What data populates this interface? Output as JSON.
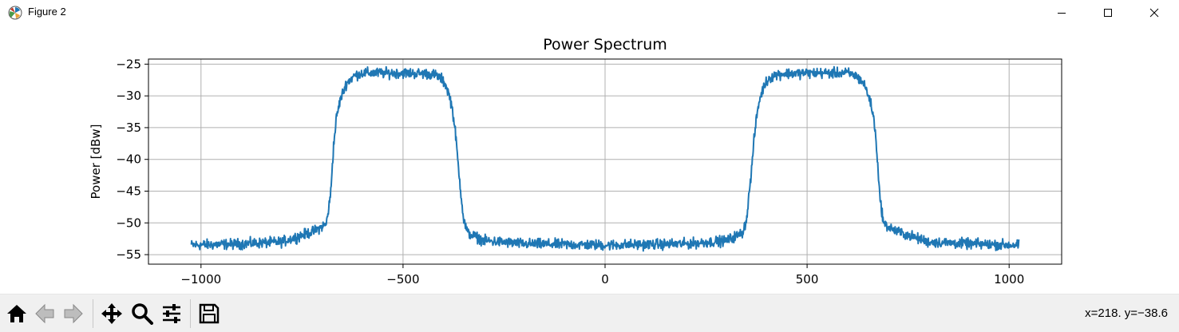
{
  "window": {
    "title": "Figure 2",
    "controls": {
      "minimize_icon": "minimize-icon",
      "maximize_icon": "maximize-icon",
      "close_icon": "close-icon"
    }
  },
  "toolbar": {
    "tools": [
      "home-icon",
      "back-arrow-icon",
      "forward-arrow-icon",
      "pan-icon",
      "zoom-icon",
      "configure-subplots-icon",
      "save-icon"
    ],
    "coordinates": "x=218.  y=−38.6"
  },
  "colors": {
    "line": "#1f77b4",
    "grid": "#b0b0b0",
    "axes": "#000000"
  },
  "chart_data": {
    "type": "line",
    "title": "Power Spectrum",
    "xlabel": "",
    "ylabel": "Power [dBw]",
    "xlim": [
      -1130,
      1130
    ],
    "ylim": [
      -56.5,
      -24.2
    ],
    "xticks": [
      -1000,
      -500,
      0,
      500,
      1000
    ],
    "xtick_labels": [
      "−1000",
      "−500",
      "0",
      "500",
      "1000"
    ],
    "yticks": [
      -25,
      -30,
      -35,
      -40,
      -45,
      -50,
      -55
    ],
    "ytick_labels": [
      "−25",
      "−30",
      "−35",
      "−40",
      "−45",
      "−50",
      "−55"
    ],
    "grid": true,
    "series": [
      {
        "x": [
          -1024,
          -900,
          -800,
          -720,
          -690,
          -680,
          -672,
          -665,
          -655,
          -640,
          -620,
          -600,
          -500,
          -440,
          -420,
          -405,
          -395,
          -385,
          -378,
          -370,
          -362,
          -350,
          -340,
          -300,
          -200,
          0,
          200,
          300,
          340,
          350,
          362,
          370,
          378,
          385,
          395,
          405,
          420,
          440,
          500,
          600,
          620,
          640,
          655,
          665,
          672,
          680,
          690,
          720,
          800,
          900,
          1024
        ],
        "y": [
          -53.5,
          -53.3,
          -53.0,
          -51.3,
          -50.2,
          -46.0,
          -38.0,
          -33.5,
          -30.5,
          -28.0,
          -26.8,
          -26.4,
          -26.4,
          -26.5,
          -26.7,
          -27.3,
          -28.2,
          -30.0,
          -32.0,
          -36.0,
          -42.0,
          -49.5,
          -51.6,
          -52.8,
          -53.3,
          -53.5,
          -53.3,
          -52.8,
          -51.6,
          -49.5,
          -42.0,
          -36.0,
          -32.0,
          -30.0,
          -28.2,
          -27.3,
          -26.7,
          -26.5,
          -26.4,
          -26.4,
          -26.8,
          -28.0,
          -30.5,
          -33.5,
          -38.0,
          -46.0,
          -50.2,
          -51.3,
          -53.0,
          -53.3,
          -53.5
        ]
      }
    ]
  }
}
